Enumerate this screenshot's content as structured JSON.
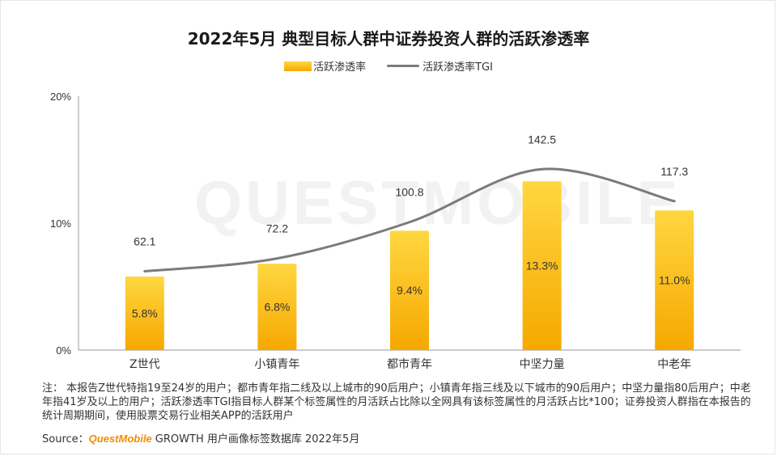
{
  "title": "2022年5月 典型目标人群中证券投资人群的活跃渗透率",
  "watermark": "QUESTMOBILE",
  "legend": {
    "bar_label": "活跃渗透率",
    "line_label": "活跃渗透率TGI"
  },
  "colors": {
    "bar_top": "#ffd740",
    "bar_bottom": "#f6a800",
    "line": "#7b7b7b",
    "brand": "#f28c00"
  },
  "chart_data": {
    "type": "bar",
    "categories": [
      "Z世代",
      "小镇青年",
      "都市青年",
      "中坚力量",
      "中老年"
    ],
    "y_ticks": [
      "0%",
      "10%",
      "20%"
    ],
    "ylim": [
      0,
      20
    ],
    "series": [
      {
        "name": "活跃渗透率",
        "type": "bar",
        "values": [
          5.8,
          6.8,
          9.4,
          13.3,
          11.0
        ],
        "labels": [
          "5.8%",
          "6.8%",
          "9.4%",
          "13.3%",
          "11.0%"
        ]
      },
      {
        "name": "活跃渗透率TGI",
        "type": "line",
        "values": [
          62.1,
          72.2,
          100.8,
          142.5,
          117.3
        ],
        "labels": [
          "62.1",
          "72.2",
          "100.8",
          "142.5",
          "117.3"
        ]
      }
    ],
    "secondary_ylim": [
      0,
      200
    ],
    "grid": false
  },
  "notes": "注： 本报告Z世代特指19至24岁的用户；都市青年指二线及以上城市的90后用户；小镇青年指三线及以下城市的90后用户；中坚力量指80后用户；中老年指41岁及以上的用户；活跃渗透率TGI指目标人群某个标签属性的月活跃占比除以全网具有该标签属性的月活跃占比*100；证券投资人群指在本报告的统计周期期间，使用股票交易行业相关APP的活跃用户",
  "source": {
    "prefix": "Source：",
    "brand": "QuestMobile",
    "suffix": " GROWTH 用户画像标签数据库 2022年5月"
  }
}
